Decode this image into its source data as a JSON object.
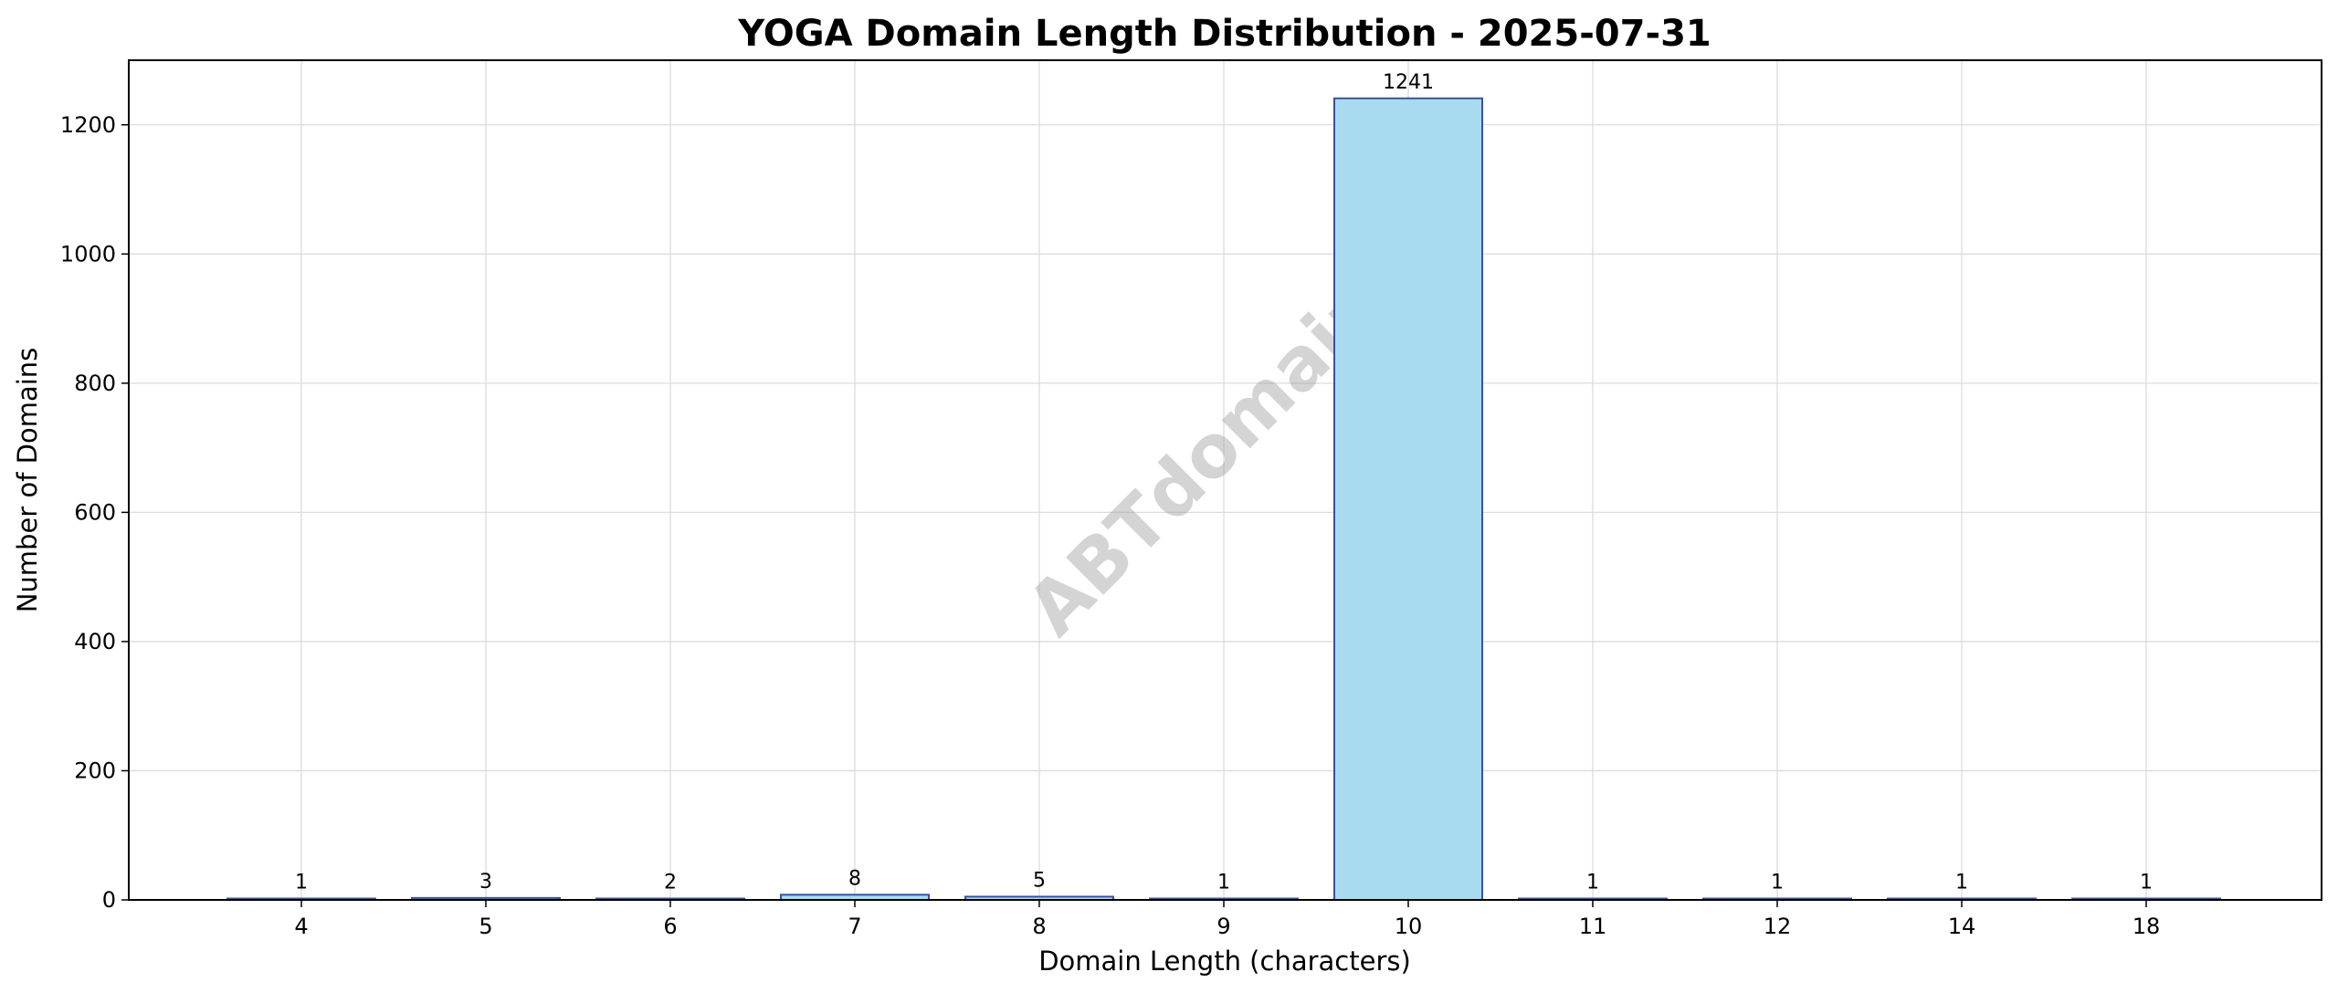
{
  "chart_data": {
    "type": "bar",
    "title": "YOGA Domain Length Distribution - 2025-07-31",
    "xlabel": "Domain Length (characters)",
    "ylabel": "Number of Domains",
    "categories": [
      "4",
      "5",
      "6",
      "7",
      "8",
      "9",
      "10",
      "11",
      "12",
      "14",
      "18"
    ],
    "values": [
      1,
      3,
      2,
      8,
      5,
      1,
      1241,
      1,
      1,
      1,
      1
    ],
    "data_labels": [
      "1",
      "3",
      "2",
      "8",
      "5",
      "1",
      "1241",
      "1",
      "1",
      "1",
      "1"
    ],
    "ylim": [
      0,
      1300
    ],
    "yticks": [
      0,
      200,
      400,
      600,
      800,
      1000,
      1200
    ],
    "ytick_labels": [
      "0",
      "200",
      "400",
      "600",
      "800",
      "1000",
      "1200"
    ],
    "grid": true,
    "bar_color": "#a8dbef",
    "bar_edge_color": "#3a4fa8",
    "watermark": "ABTdomain"
  }
}
